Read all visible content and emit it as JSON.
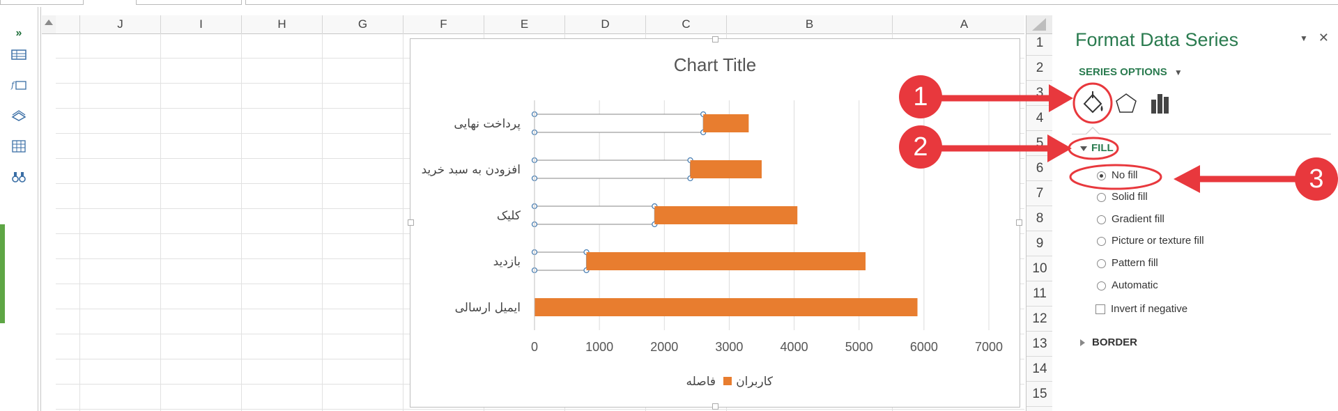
{
  "grid": {
    "columns": [
      "J",
      "I",
      "H",
      "G",
      "F",
      "E",
      "D",
      "C",
      "B",
      "A"
    ],
    "rows": [
      "1",
      "2",
      "3",
      "4",
      "5",
      "6",
      "7",
      "8",
      "9",
      "10",
      "11",
      "12",
      "13",
      "14",
      "15"
    ]
  },
  "chart_data": {
    "type": "bar",
    "title": "Chart Title",
    "categories": [
      "پرداخت نهایی",
      "افزودن به سبد خرید",
      "کلیک",
      "بازدید",
      "ایمیل ارسالی"
    ],
    "series": [
      {
        "name": "فاصله",
        "values": [
          2600,
          2400,
          1850,
          800,
          0
        ],
        "fill": "none",
        "color": "#ffffff"
      },
      {
        "name": "کاربران",
        "values": [
          700,
          1100,
          2200,
          4300,
          5900
        ],
        "color": "#e87d2f"
      }
    ],
    "stacked": true,
    "orientation": "horizontal",
    "xlim": [
      0,
      7000
    ],
    "xticks": [
      "0",
      "1000",
      "2000",
      "3000",
      "4000",
      "5000",
      "6000",
      "7000"
    ],
    "grid": true,
    "legend": "bottom"
  },
  "pane": {
    "title": "Format Data Series",
    "series_options": "SERIES OPTIONS",
    "fill_section": "FILL",
    "border_section": "BORDER",
    "fill_options": [
      "No fill",
      "Solid fill",
      "Gradient fill",
      "Picture or texture fill",
      "Pattern fill",
      "Automatic"
    ],
    "selected_fill": "No fill",
    "invert_label": "Invert if negative",
    "icons": [
      "fill-line-icon",
      "effects-icon",
      "series-options-icon"
    ]
  },
  "annotations": {
    "badges": [
      "1",
      "2",
      "3"
    ],
    "color": "#e8383d"
  }
}
